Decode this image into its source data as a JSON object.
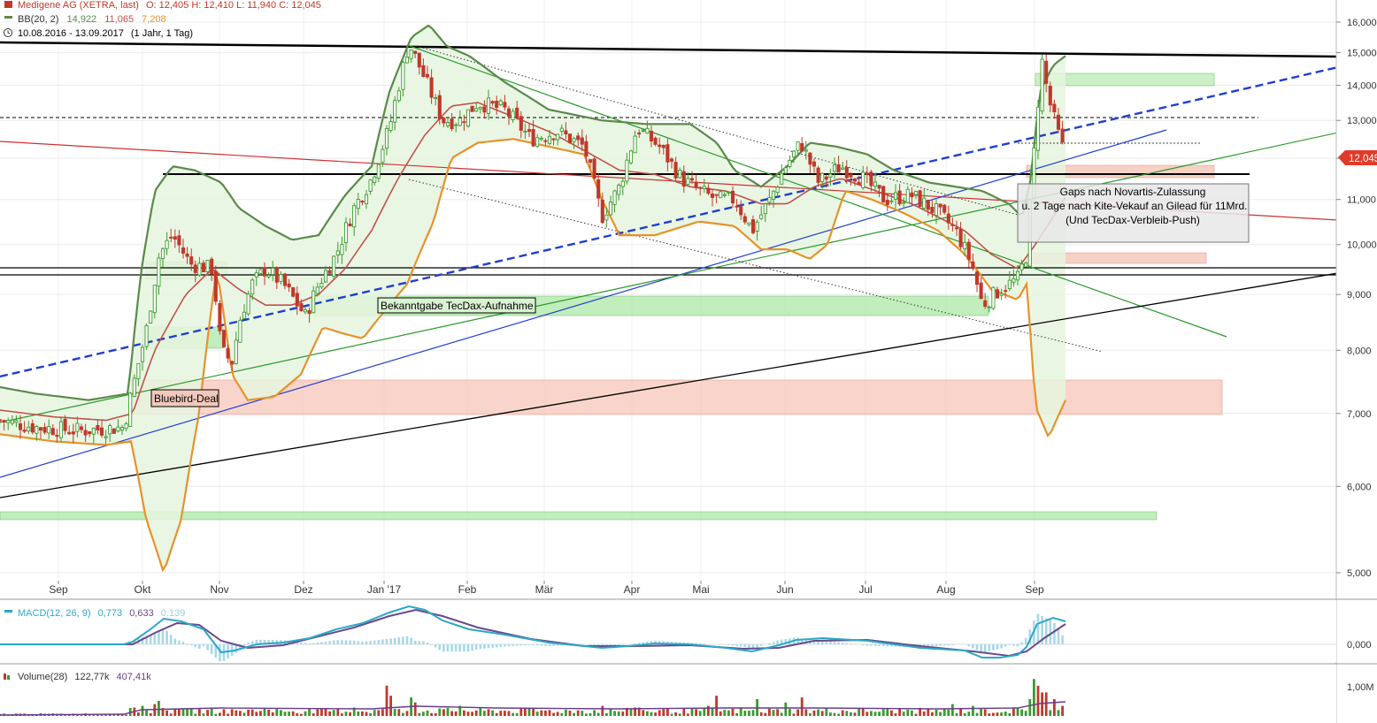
{
  "header": {
    "symbol": "Medigene AG (XETRA, last)",
    "ohlc": "O: 12,405  H: 12,410  L: 11,940  C: 12,045",
    "bb_label": "BB(20, 2)",
    "bb_upper": "14,922",
    "bb_mid": "11,065",
    "bb_lower": "7,208",
    "range": "10.08.2016 - 13.09.2017",
    "range_note": "(1 Jahr, 1 Tag)"
  },
  "colors": {
    "up_candle": "#3a9b2e",
    "down_candle": "#c0392b",
    "bb_upper": "#5a8a4a",
    "bb_mid": "#c0524a",
    "bb_lower": "#e8922a",
    "bb_fill": "#e6f4df",
    "macd": "#2aa8c8",
    "signal": "#6a4a8a",
    "blue_dashed": "#1f3fcf",
    "blue": "#2040d0",
    "green": "#2a9a2a",
    "red": "#d03030",
    "zone_green": "#a8e6a0",
    "zone_red": "#f6c6b8"
  },
  "annotations": {
    "tecdax": "Bekanntgabe TecDax-Aufnahme",
    "bluebird": "Bluebird-Deal",
    "gaps_line1": "Gaps nach Novartis-Zulassung",
    "gaps_line2": "u. 2 Tage nach Kite-Vekauf an Gilead für 11Mrd.",
    "gaps_line3": "(Und TecDax-Verbleib-Push)"
  },
  "price_marker": "12,045",
  "macd_panel": {
    "label": "MACD(12, 26, 9)",
    "v1": "0,773",
    "v2": "0,633",
    "v3": "0,139",
    "tick": "0,000"
  },
  "volume_panel": {
    "label": "Volume(28)",
    "v1": "122,77k",
    "v2": "407,41k",
    "tick": "1,00M"
  },
  "chart_data": {
    "type": "candlestick",
    "y_scale": "log",
    "ylim": [
      4.6,
      16.5
    ],
    "y_ticks": [
      "16,000",
      "15,000",
      "14,000",
      "13,000",
      "12,000",
      "11,000",
      "10,000",
      "9,000",
      "8,000",
      "7,000",
      "6,000",
      "5,000"
    ],
    "y_tick_values": [
      16,
      15,
      14,
      13,
      12,
      11,
      10,
      9,
      8,
      7,
      6,
      5
    ],
    "x_labels": [
      "Sep",
      "Okt",
      "Nov",
      "Dez",
      "Jan '17",
      "Feb",
      "Mär",
      "Apr",
      "Mai",
      "Jun",
      "Jul",
      "Aug",
      "Sep"
    ],
    "last_close": 12.045,
    "price_path": [
      [
        0,
        6.9
      ],
      [
        40,
        6.8
      ],
      [
        90,
        6.75
      ],
      [
        140,
        6.8
      ],
      [
        150,
        7.4
      ],
      [
        165,
        8.3
      ],
      [
        180,
        9.8
      ],
      [
        195,
        10.2
      ],
      [
        215,
        9.6
      ],
      [
        240,
        9.5
      ],
      [
        250,
        8.0
      ],
      [
        262,
        7.8
      ],
      [
        272,
        8.6
      ],
      [
        285,
        9.2
      ],
      [
        300,
        9.5
      ],
      [
        320,
        9.2
      ],
      [
        345,
        8.6
      ],
      [
        360,
        9.2
      ],
      [
        380,
        9.8
      ],
      [
        400,
        10.8
      ],
      [
        420,
        11.5
      ],
      [
        440,
        12.8
      ],
      [
        462,
        15.3
      ],
      [
        480,
        14.2
      ],
      [
        500,
        13.0
      ],
      [
        520,
        13.0
      ],
      [
        540,
        13.5
      ],
      [
        570,
        13.3
      ],
      [
        600,
        12.5
      ],
      [
        630,
        12.7
      ],
      [
        660,
        12.3
      ],
      [
        680,
        10.6
      ],
      [
        700,
        11.3
      ],
      [
        720,
        12.8
      ],
      [
        745,
        12.3
      ],
      [
        770,
        11.5
      ],
      [
        790,
        11.2
      ],
      [
        810,
        11.0
      ],
      [
        830,
        11.0
      ],
      [
        850,
        10.3
      ],
      [
        870,
        11.0
      ],
      [
        885,
        11.7
      ],
      [
        905,
        12.4
      ],
      [
        925,
        11.4
      ],
      [
        950,
        11.8
      ],
      [
        975,
        11.5
      ],
      [
        1000,
        11.0
      ],
      [
        1030,
        11.1
      ],
      [
        1060,
        10.7
      ],
      [
        1080,
        10.3
      ],
      [
        1098,
        9.6
      ],
      [
        1110,
        8.8
      ],
      [
        1130,
        9.1
      ],
      [
        1150,
        9.3
      ],
      [
        1160,
        9.8
      ],
      [
        1170,
        12.6
      ],
      [
        1177,
        14.8
      ],
      [
        1185,
        13.6
      ],
      [
        1195,
        12.7
      ],
      [
        1204,
        12.04
      ]
    ],
    "bb_upper_path": [
      [
        0,
        7.4
      ],
      [
        40,
        7.3
      ],
      [
        100,
        7.2
      ],
      [
        145,
        7.3
      ],
      [
        160,
        9.5
      ],
      [
        175,
        11.2
      ],
      [
        195,
        11.8
      ],
      [
        220,
        11.7
      ],
      [
        250,
        11.4
      ],
      [
        270,
        10.8
      ],
      [
        300,
        10.4
      ],
      [
        330,
        10.1
      ],
      [
        360,
        10.2
      ],
      [
        390,
        11.1
      ],
      [
        420,
        11.8
      ],
      [
        440,
        13.8
      ],
      [
        465,
        15.5
      ],
      [
        485,
        15.9
      ],
      [
        505,
        15.2
      ],
      [
        530,
        14.9
      ],
      [
        570,
        14.1
      ],
      [
        620,
        13.3
      ],
      [
        680,
        13.0
      ],
      [
        730,
        12.9
      ],
      [
        780,
        12.9
      ],
      [
        810,
        12.4
      ],
      [
        830,
        11.7
      ],
      [
        860,
        11.3
      ],
      [
        890,
        11.8
      ],
      [
        915,
        12.4
      ],
      [
        945,
        12.3
      ],
      [
        980,
        12.1
      ],
      [
        1010,
        11.7
      ],
      [
        1050,
        11.4
      ],
      [
        1080,
        11.3
      ],
      [
        1110,
        11.2
      ],
      [
        1140,
        10.9
      ],
      [
        1155,
        10.6
      ],
      [
        1165,
        11.5
      ],
      [
        1175,
        13.8
      ],
      [
        1190,
        14.6
      ],
      [
        1204,
        14.9
      ]
    ],
    "bb_mid_path": [
      [
        0,
        7.05
      ],
      [
        60,
        6.95
      ],
      [
        120,
        6.9
      ],
      [
        150,
        7.0
      ],
      [
        175,
        8.0
      ],
      [
        210,
        9.0
      ],
      [
        240,
        9.5
      ],
      [
        270,
        9.1
      ],
      [
        300,
        8.8
      ],
      [
        330,
        8.8
      ],
      [
        360,
        9.0
      ],
      [
        390,
        9.5
      ],
      [
        420,
        10.3
      ],
      [
        450,
        11.5
      ],
      [
        480,
        12.6
      ],
      [
        510,
        13.4
      ],
      [
        540,
        13.5
      ],
      [
        580,
        13.1
      ],
      [
        620,
        12.7
      ],
      [
        660,
        12.2
      ],
      [
        700,
        11.7
      ],
      [
        740,
        11.6
      ],
      [
        780,
        11.3
      ],
      [
        820,
        11.2
      ],
      [
        860,
        10.9
      ],
      [
        890,
        10.9
      ],
      [
        920,
        11.3
      ],
      [
        950,
        11.5
      ],
      [
        990,
        11.2
      ],
      [
        1030,
        10.9
      ],
      [
        1060,
        10.6
      ],
      [
        1090,
        10.3
      ],
      [
        1120,
        9.8
      ],
      [
        1150,
        9.5
      ],
      [
        1170,
        10.0
      ],
      [
        1190,
        10.6
      ],
      [
        1204,
        11.06
      ]
    ],
    "bb_lower_path": [
      [
        0,
        6.7
      ],
      [
        60,
        6.6
      ],
      [
        120,
        6.55
      ],
      [
        148,
        6.6
      ],
      [
        165,
        5.6
      ],
      [
        185,
        5.0
      ],
      [
        205,
        5.6
      ],
      [
        225,
        7.0
      ],
      [
        245,
        9.5
      ],
      [
        262,
        7.6
      ],
      [
        280,
        7.2
      ],
      [
        310,
        7.25
      ],
      [
        340,
        7.6
      ],
      [
        365,
        8.4
      ],
      [
        385,
        8.3
      ],
      [
        410,
        8.2
      ],
      [
        430,
        8.6
      ],
      [
        460,
        9.2
      ],
      [
        490,
        10.5
      ],
      [
        510,
        12.0
      ],
      [
        540,
        12.4
      ],
      [
        580,
        12.5
      ],
      [
        620,
        12.3
      ],
      [
        660,
        12.1
      ],
      [
        680,
        11.0
      ],
      [
        700,
        10.2
      ],
      [
        740,
        10.2
      ],
      [
        790,
        10.5
      ],
      [
        830,
        10.4
      ],
      [
        860,
        9.9
      ],
      [
        890,
        9.9
      ],
      [
        915,
        9.7
      ],
      [
        935,
        10.0
      ],
      [
        955,
        11.2
      ],
      [
        985,
        11.0
      ],
      [
        1020,
        10.7
      ],
      [
        1060,
        10.3
      ],
      [
        1090,
        9.8
      ],
      [
        1120,
        9.1
      ],
      [
        1150,
        8.9
      ],
      [
        1160,
        9.2
      ],
      [
        1170,
        7.1
      ],
      [
        1185,
        6.65
      ],
      [
        1204,
        7.2
      ]
    ],
    "volume_bars": [
      [
        150,
        0.25
      ],
      [
        160,
        0.3
      ],
      [
        175,
        0.35
      ],
      [
        180,
        0.45
      ],
      [
        200,
        0.2
      ],
      [
        240,
        0.25
      ],
      [
        260,
        0.2
      ],
      [
        300,
        0.22
      ],
      [
        360,
        0.2
      ],
      [
        400,
        0.25
      ],
      [
        437,
        0.9
      ],
      [
        440,
        0.6
      ],
      [
        466,
        0.55
      ],
      [
        470,
        0.4
      ],
      [
        520,
        0.3
      ],
      [
        600,
        0.22
      ],
      [
        680,
        0.3
      ],
      [
        720,
        0.25
      ],
      [
        800,
        0.3
      ],
      [
        808,
        0.6
      ],
      [
        855,
        0.5
      ],
      [
        890,
        0.4
      ],
      [
        905,
        0.55
      ],
      [
        1075,
        0.35
      ],
      [
        1100,
        0.3
      ],
      [
        1165,
        0.5
      ],
      [
        1170,
        1.1
      ],
      [
        1175,
        0.9
      ],
      [
        1180,
        0.7
      ],
      [
        1190,
        0.5
      ],
      [
        1200,
        0.3
      ]
    ]
  }
}
